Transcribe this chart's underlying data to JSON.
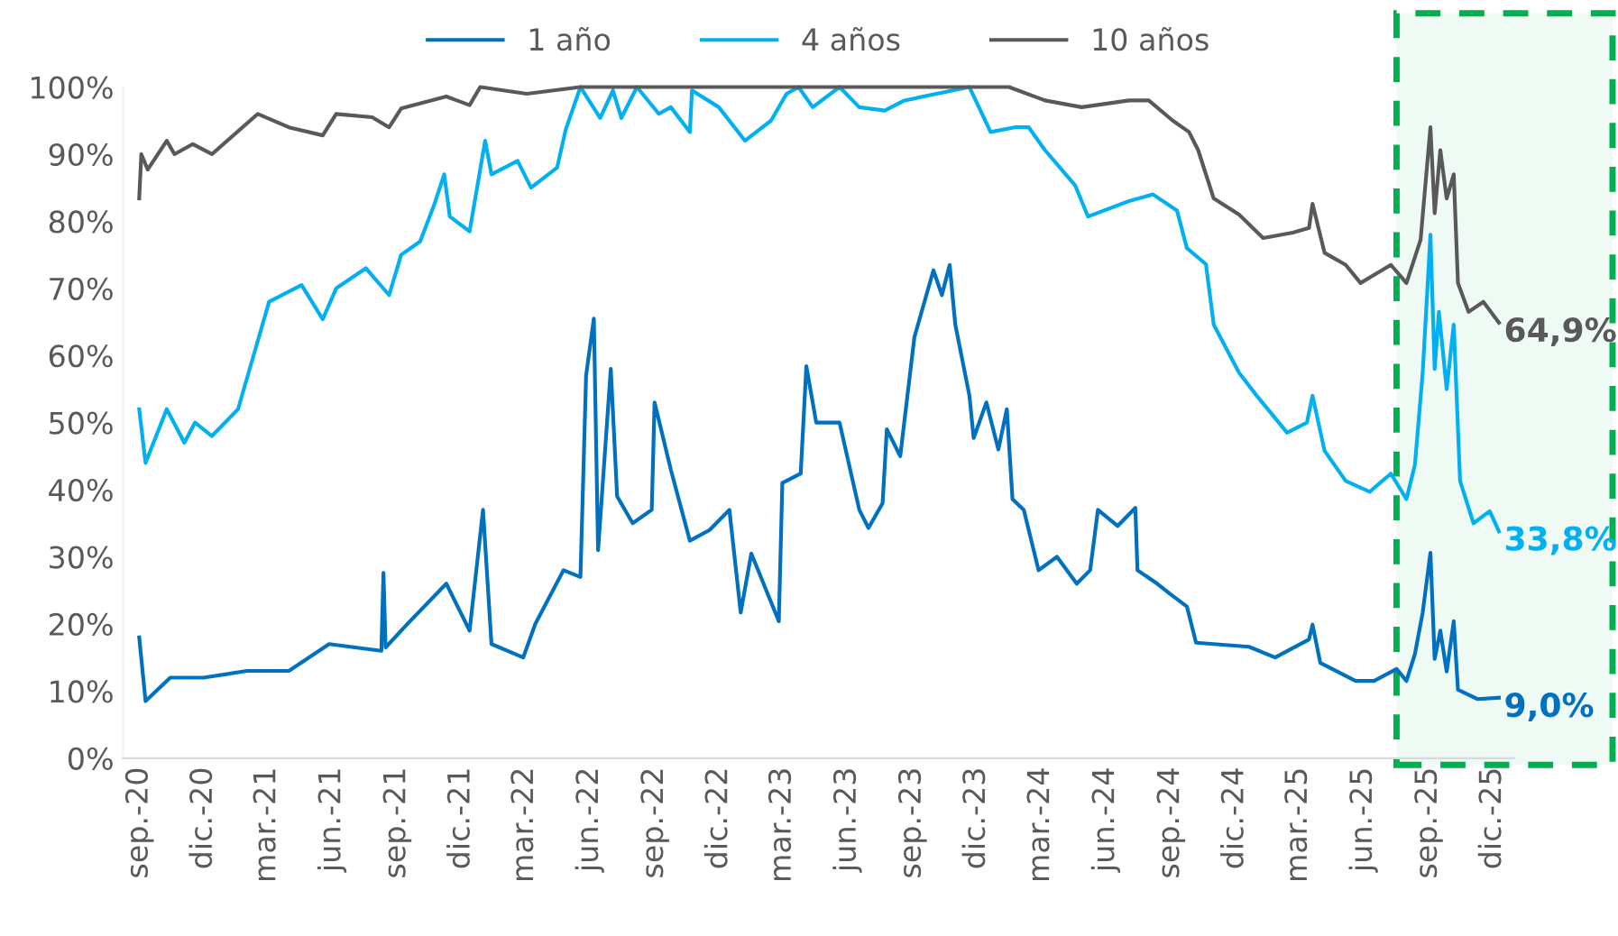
{
  "chart_data": {
    "type": "line",
    "legend": "top",
    "grid": false,
    "marker": "none",
    "line_style": "solid",
    "xlim": [
      "2020-08-09",
      "2026-01-01"
    ],
    "ylim": [
      0,
      100
    ],
    "yticks": [
      {
        "value": 0,
        "label": "0%"
      },
      {
        "value": 10,
        "label": "10%"
      },
      {
        "value": 20,
        "label": "20%"
      },
      {
        "value": 30,
        "label": "30%"
      },
      {
        "value": 40,
        "label": "40%"
      },
      {
        "value": 50,
        "label": "50%"
      },
      {
        "value": 60,
        "label": "60%"
      },
      {
        "value": 70,
        "label": "70%"
      },
      {
        "value": 80,
        "label": "80%"
      },
      {
        "value": 90,
        "label": "90%"
      },
      {
        "value": 100,
        "label": "100%"
      }
    ],
    "xticks": [
      {
        "value": "2020-09-01",
        "label": "sep.-20"
      },
      {
        "value": "2020-12-01",
        "label": "dic.-20"
      },
      {
        "value": "2021-03-01",
        "label": "mar.-21"
      },
      {
        "value": "2021-06-01",
        "label": "jun.-21"
      },
      {
        "value": "2021-09-01",
        "label": "sep.-21"
      },
      {
        "value": "2021-12-01",
        "label": "dic.-21"
      },
      {
        "value": "2022-03-01",
        "label": "mar.-22"
      },
      {
        "value": "2022-06-01",
        "label": "jun.-22"
      },
      {
        "value": "2022-09-01",
        "label": "sep.-22"
      },
      {
        "value": "2022-12-01",
        "label": "dic.-22"
      },
      {
        "value": "2023-03-01",
        "label": "mar.-23"
      },
      {
        "value": "2023-06-01",
        "label": "jun.-23"
      },
      {
        "value": "2023-09-01",
        "label": "sep.-23"
      },
      {
        "value": "2023-12-01",
        "label": "dic.-23"
      },
      {
        "value": "2024-03-01",
        "label": "mar.-24"
      },
      {
        "value": "2024-06-01",
        "label": "jun.-24"
      },
      {
        "value": "2024-09-01",
        "label": "sep.-24"
      },
      {
        "value": "2024-12-01",
        "label": "dic.-24"
      },
      {
        "value": "2025-03-01",
        "label": "mar.-25"
      },
      {
        "value": "2025-06-01",
        "label": "jun.-25"
      },
      {
        "value": "2025-09-01",
        "label": "sep.-25"
      },
      {
        "value": "2025-12-01",
        "label": "dic.-25"
      }
    ],
    "bands": [
      {
        "axis": "x",
        "from": "2025-07-18",
        "to": "2026-05-20",
        "color": "#00b050"
      }
    ],
    "annotations": [
      {
        "text": "64,9%",
        "x": "2025-12-10",
        "y": 64.9
      },
      {
        "text": "33,8%",
        "x": "2025-12-10",
        "y": 33.8
      },
      {
        "text": "9,0%",
        "x": "2025-12-10",
        "y": 9.0
      }
    ],
    "series": [
      {
        "name": "1 año",
        "color": "#0070c0",
        "x": [
          "2020-09-01",
          "2020-09-10",
          "2020-10-15",
          "2020-12-01",
          "2021-02-01",
          "2021-04-01",
          "2021-05-28",
          "2021-08-10",
          "2021-08-13",
          "2021-08-16",
          "2021-09-16",
          "2021-11-10",
          "2021-12-13",
          "2022-01-01",
          "2022-01-13",
          "2022-02-27",
          "2022-03-16",
          "2022-04-25",
          "2022-05-19",
          "2022-05-27",
          "2022-06-07",
          "2022-06-13",
          "2022-07-01",
          "2022-07-10",
          "2022-08-01",
          "2022-08-28",
          "2022-09-01",
          "2022-09-24",
          "2022-10-21",
          "2022-11-18",
          "2022-12-16",
          "2023-01-01",
          "2023-01-16",
          "2023-02-24",
          "2023-03-01",
          "2023-03-27",
          "2023-04-04",
          "2023-04-18",
          "2023-05-21",
          "2023-06-18",
          "2023-07-01",
          "2023-07-21",
          "2023-07-27",
          "2023-08-15",
          "2023-09-04",
          "2023-10-01",
          "2023-10-13",
          "2023-10-24",
          "2023-11-01",
          "2023-11-21",
          "2023-11-27",
          "2023-12-15",
          "2024-01-01",
          "2024-01-13",
          "2024-01-21",
          "2024-02-06",
          "2024-02-27",
          "2024-03-24",
          "2024-04-21",
          "2024-05-10",
          "2024-05-21",
          "2024-06-18",
          "2024-07-13",
          "2024-07-16",
          "2024-08-13",
          "2024-09-01",
          "2024-09-24",
          "2024-10-07",
          "2024-12-21",
          "2025-01-27",
          "2025-03-16",
          "2025-03-21",
          "2025-04-01",
          "2025-05-21",
          "2025-06-16",
          "2025-07-18",
          "2025-08-01",
          "2025-08-13",
          "2025-08-24",
          "2025-09-04",
          "2025-09-10",
          "2025-09-18",
          "2025-09-27",
          "2025-10-07",
          "2025-10-13",
          "2025-11-10",
          "2025-12-10"
        ],
        "values": [
          18,
          8.5,
          12,
          12,
          13,
          13,
          17,
          16,
          27.6,
          16.5,
          20,
          26,
          19,
          37,
          17,
          15,
          20,
          28,
          27,
          57,
          65.5,
          31,
          58,
          39,
          35,
          37,
          53,
          43,
          32.4,
          34,
          37,
          21.7,
          30.5,
          20.4,
          41,
          42.4,
          58.4,
          50,
          50,
          37,
          34.3,
          38,
          49,
          45,
          62.7,
          72.7,
          69,
          73.5,
          64.6,
          54,
          47.7,
          53,
          46,
          52,
          38.6,
          37,
          28,
          30,
          26,
          28,
          37,
          34.6,
          37.3,
          28,
          26,
          24.4,
          22.6,
          17.2,
          16.6,
          15,
          17.7,
          19.9,
          14.2,
          11.5,
          11.5,
          13.3,
          11.5,
          15.5,
          21.7,
          30.6,
          14.8,
          19,
          12.9,
          20.4,
          10.2,
          8.8,
          9.0
        ]
      },
      {
        "name": "4 años",
        "color": "#00b0f0",
        "x": [
          "2020-09-01",
          "2020-09-10",
          "2020-10-10",
          "2020-11-04",
          "2020-11-19",
          "2020-12-13",
          "2021-01-19",
          "2021-02-10",
          "2021-03-04",
          "2021-04-19",
          "2021-05-19",
          "2021-06-07",
          "2021-07-19",
          "2021-08-21",
          "2021-09-07",
          "2021-10-04",
          "2021-10-24",
          "2021-11-07",
          "2021-11-15",
          "2021-12-13",
          "2022-01-04",
          "2022-01-13",
          "2022-02-19",
          "2022-03-10",
          "2022-04-16",
          "2022-04-28",
          "2022-05-19",
          "2022-06-16",
          "2022-07-04",
          "2022-07-16",
          "2022-08-07",
          "2022-09-07",
          "2022-09-24",
          "2022-10-21",
          "2022-10-24",
          "2022-12-01",
          "2023-01-07",
          "2023-02-13",
          "2023-03-07",
          "2023-03-24",
          "2023-04-13",
          "2023-05-21",
          "2023-06-18",
          "2023-07-24",
          "2023-08-21",
          "2023-11-21",
          "2023-12-21",
          "2024-01-24",
          "2024-02-13",
          "2024-03-07",
          "2024-04-19",
          "2024-05-07",
          "2024-07-04",
          "2024-08-07",
          "2024-09-10",
          "2024-09-24",
          "2024-10-21",
          "2024-11-01",
          "2024-12-07",
          "2025-01-01",
          "2025-02-13",
          "2025-03-13",
          "2025-03-21",
          "2025-04-07",
          "2025-05-07",
          "2025-06-10",
          "2025-07-10",
          "2025-08-01",
          "2025-08-13",
          "2025-08-24",
          "2025-09-04",
          "2025-09-10",
          "2025-09-16",
          "2025-09-27",
          "2025-10-07",
          "2025-10-16",
          "2025-11-04",
          "2025-11-27",
          "2025-12-10"
        ],
        "values": [
          52,
          44,
          52,
          47,
          50,
          48,
          52,
          60,
          68,
          70.5,
          65.4,
          70,
          73,
          69,
          75,
          77,
          82.5,
          87,
          80.7,
          78.5,
          92,
          87,
          89,
          85,
          88,
          93.6,
          100,
          95.4,
          99.5,
          95.4,
          100,
          96,
          97,
          93.3,
          99.5,
          97,
          92,
          95,
          99,
          100,
          97,
          100,
          97,
          96.5,
          98,
          100,
          93.3,
          94,
          94,
          90.6,
          85.3,
          80.7,
          83,
          84,
          81.6,
          76,
          73.6,
          64.6,
          57.4,
          54,
          48.5,
          50,
          54,
          45.8,
          41.3,
          39.7,
          42.4,
          38.6,
          43.7,
          57.4,
          78,
          58,
          66.5,
          55,
          64.6,
          41.3,
          35,
          36.8,
          33.8
        ]
      },
      {
        "name": "10 años",
        "color": "#595959",
        "x": [
          "2020-09-01",
          "2020-09-04",
          "2020-09-13",
          "2020-10-10",
          "2020-10-21",
          "2020-11-16",
          "2020-12-13",
          "2021-02-16",
          "2021-04-01",
          "2021-05-19",
          "2021-06-07",
          "2021-07-28",
          "2021-08-21",
          "2021-09-07",
          "2021-11-10",
          "2021-12-13",
          "2021-12-28",
          "2022-03-04",
          "2022-05-19",
          "2024-01-16",
          "2024-03-07",
          "2024-04-28",
          "2024-07-04",
          "2024-08-01",
          "2024-09-04",
          "2024-09-27",
          "2024-10-10",
          "2024-11-01",
          "2024-12-07",
          "2025-01-10",
          "2025-02-21",
          "2025-03-16",
          "2025-03-21",
          "2025-04-07",
          "2025-05-07",
          "2025-05-28",
          "2025-07-10",
          "2025-08-01",
          "2025-08-21",
          "2025-09-04",
          "2025-09-10",
          "2025-09-18",
          "2025-09-27",
          "2025-10-07",
          "2025-10-13",
          "2025-10-28",
          "2025-11-18",
          "2025-12-10"
        ],
        "values": [
          83.4,
          90,
          87.7,
          92,
          90,
          91.5,
          90,
          96,
          94,
          92.8,
          96,
          95.5,
          94,
          96.8,
          98.6,
          97.3,
          100,
          99,
          100,
          100,
          98,
          97,
          98,
          98,
          95,
          93.3,
          90.6,
          83.4,
          81,
          77.5,
          78.3,
          79,
          82.6,
          75.3,
          73.5,
          70.8,
          73.5,
          70.8,
          77.2,
          94,
          81.2,
          90.6,
          83.4,
          87,
          70.8,
          66.5,
          68,
          64.9
        ]
      }
    ]
  }
}
